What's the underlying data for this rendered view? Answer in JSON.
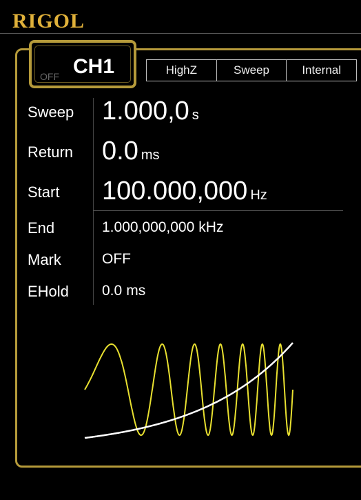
{
  "header": {
    "brand": "RIGOL"
  },
  "channel": {
    "state": "OFF",
    "name": "CH1"
  },
  "tabs": [
    "HighZ",
    "Sweep",
    "Internal"
  ],
  "params": [
    {
      "label": "Sweep",
      "value": "1.000,0",
      "unit": "s"
    },
    {
      "label": "Return",
      "value": "0.0",
      "unit": "ms"
    },
    {
      "label": "Start",
      "value": "100.000,000",
      "unit": "Hz"
    },
    {
      "label": "End",
      "value": "1.000,000,000",
      "unit": "kHz"
    },
    {
      "label": "Mark",
      "value": "OFF",
      "unit": null
    },
    {
      "label": "EHold",
      "value": "0.0",
      "unit": "ms"
    }
  ]
}
